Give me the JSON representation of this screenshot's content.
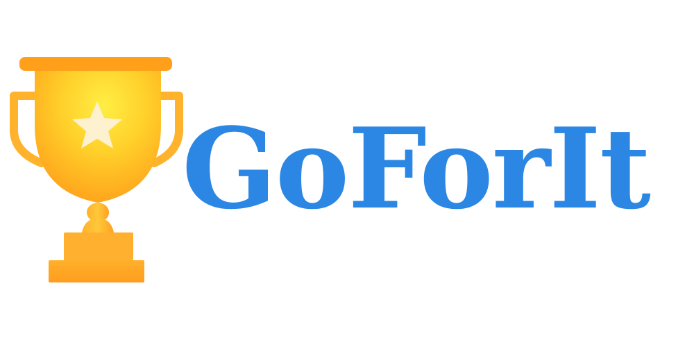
{
  "logo": {
    "wordmark": "GoForIt",
    "icon": "trophy-star-icon",
    "colors": {
      "wordmark": "#2b87e3",
      "trophy_light": "#ffe93d",
      "trophy_mid": "#ffc21f",
      "trophy_dark": "#ff9f1a",
      "trophy_edge": "#f79a1e",
      "star": "#fdf1cf"
    }
  }
}
